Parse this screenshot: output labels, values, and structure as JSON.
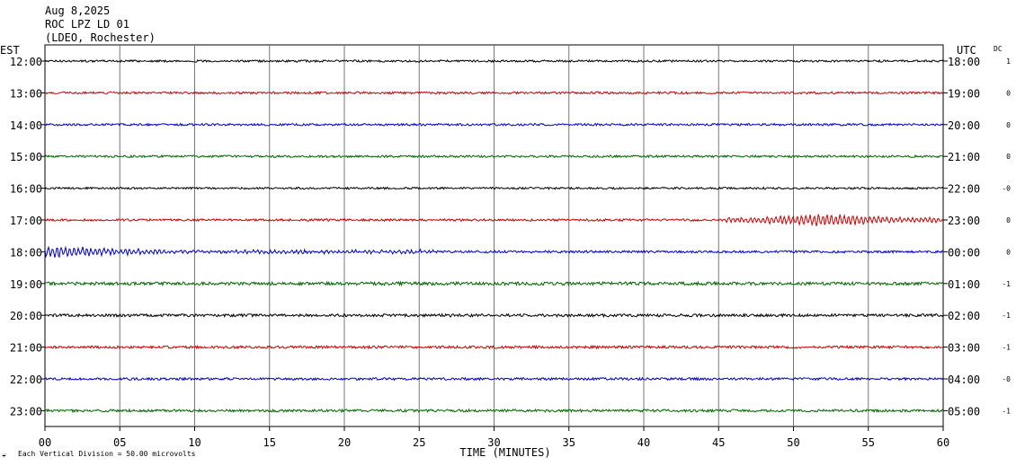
{
  "header": {
    "date": "Aug 8,2025",
    "station": "ROC LPZ LD 01",
    "network": "(LDEO, Rochester)"
  },
  "labels": {
    "left_timezone": "EST",
    "right_timezone": "UTC",
    "dc_header": "DC",
    "x_axis_title": "TIME (MINUTES)",
    "scale_note": "Each Vertical Division =   50.00 microvolts",
    "corner_mark": "☔"
  },
  "chart_data": {
    "type": "line",
    "title": "ROC LPZ LD 01",
    "xlabel": "TIME (MINUTES)",
    "xlim": [
      0,
      60
    ],
    "x_ticks": [
      "00",
      "05",
      "10",
      "15",
      "20",
      "25",
      "30",
      "35",
      "40",
      "45",
      "50",
      "55",
      "60"
    ],
    "x_tick_values": [
      0,
      5,
      10,
      15,
      20,
      25,
      30,
      35,
      40,
      45,
      50,
      55,
      60
    ],
    "grid": true,
    "series_colors": [
      "#000000",
      "#cc0000",
      "#0000cc",
      "#006600"
    ],
    "rows": [
      {
        "est": "12:00",
        "utc": "18:00",
        "dc": "1",
        "color": "#000000",
        "amp": 1.0,
        "events": []
      },
      {
        "est": "13:00",
        "utc": "19:00",
        "dc": "0",
        "color": "#cc0000",
        "amp": 1.1,
        "events": []
      },
      {
        "est": "14:00",
        "utc": "20:00",
        "dc": "0",
        "color": "#0000cc",
        "amp": 1.1,
        "events": []
      },
      {
        "est": "15:00",
        "utc": "21:00",
        "dc": "0",
        "color": "#006600",
        "amp": 1.1,
        "events": []
      },
      {
        "est": "16:00",
        "utc": "22:00",
        "dc": "-0",
        "color": "#000000",
        "amp": 1.0,
        "events": []
      },
      {
        "est": "17:00",
        "utc": "23:00",
        "dc": "0",
        "color": "#cc0000",
        "amp": 1.1,
        "events": [
          {
            "start": 45.5,
            "end": 60,
            "peak": 52,
            "amp": 7
          }
        ]
      },
      {
        "est": "18:00",
        "utc": "00:00",
        "dc": "0",
        "color": "#0000cc",
        "amp": 1.2,
        "events": [
          {
            "start": 0,
            "end": 26,
            "peak": 1,
            "amp": 6
          }
        ]
      },
      {
        "est": "19:00",
        "utc": "01:00",
        "dc": "-1",
        "color": "#006600",
        "amp": 1.6,
        "events": []
      },
      {
        "est": "20:00",
        "utc": "02:00",
        "dc": "-1",
        "color": "#000000",
        "amp": 1.4,
        "events": []
      },
      {
        "est": "21:00",
        "utc": "03:00",
        "dc": "-1",
        "color": "#cc0000",
        "amp": 1.3,
        "events": []
      },
      {
        "est": "22:00",
        "utc": "04:00",
        "dc": "-0",
        "color": "#0000cc",
        "amp": 1.2,
        "events": []
      },
      {
        "est": "23:00",
        "utc": "05:00",
        "dc": "-1",
        "color": "#006600",
        "amp": 1.3,
        "events": []
      }
    ]
  }
}
